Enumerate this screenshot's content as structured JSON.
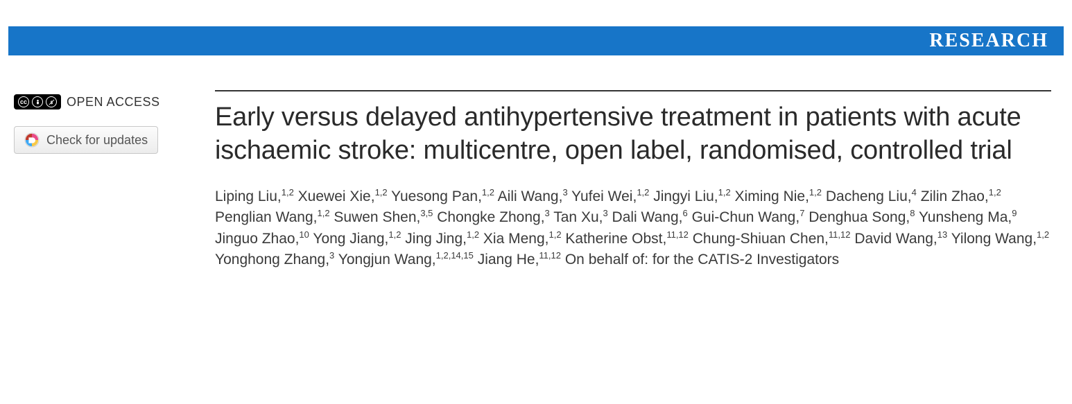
{
  "banner": {
    "label": "RESEARCH",
    "background_color": "#1775c8",
    "text_color": "#ffffff"
  },
  "sidebar": {
    "open_access_label": "OPEN ACCESS",
    "cc_label": "cc",
    "check_updates_label": "Check for updates"
  },
  "article": {
    "title": "Early versus delayed antihypertensive treatment in patients with acute ischaemic stroke: multicentre, open label, randomised, controlled trial",
    "authors": [
      {
        "name": "Liping Liu",
        "affil": "1,2"
      },
      {
        "name": "Xuewei Xie",
        "affil": "1,2"
      },
      {
        "name": "Yuesong Pan",
        "affil": "1,2"
      },
      {
        "name": "Aili Wang",
        "affil": "3"
      },
      {
        "name": "Yufei Wei",
        "affil": "1,2"
      },
      {
        "name": "Jingyi Liu",
        "affil": "1,2"
      },
      {
        "name": "Ximing Nie",
        "affil": "1,2"
      },
      {
        "name": "Dacheng Liu",
        "affil": "4"
      },
      {
        "name": "Zilin Zhao",
        "affil": "1,2"
      },
      {
        "name": "Penglian Wang",
        "affil": "1,2"
      },
      {
        "name": "Suwen Shen",
        "affil": "3,5"
      },
      {
        "name": "Chongke Zhong",
        "affil": "3"
      },
      {
        "name": "Tan Xu",
        "affil": "3"
      },
      {
        "name": "Dali Wang",
        "affil": "6"
      },
      {
        "name": "Gui-Chun Wang",
        "affil": "7"
      },
      {
        "name": "Denghua Song",
        "affil": "8"
      },
      {
        "name": "Yunsheng Ma",
        "affil": "9"
      },
      {
        "name": "Jinguo Zhao",
        "affil": "10"
      },
      {
        "name": "Yong Jiang",
        "affil": "1,2"
      },
      {
        "name": "Jing Jing",
        "affil": "1,2"
      },
      {
        "name": "Xia Meng",
        "affil": "1,2"
      },
      {
        "name": "Katherine Obst",
        "affil": "11,12"
      },
      {
        "name": "Chung-Shiuan Chen",
        "affil": "11,12"
      },
      {
        "name": "David Wang",
        "affil": "13"
      },
      {
        "name": "Yilong Wang",
        "affil": "1,2"
      },
      {
        "name": "Yonghong Zhang",
        "affil": "3"
      },
      {
        "name": "Yongjun Wang",
        "affil": "1,2,14,15"
      },
      {
        "name": "Jiang He",
        "affil": "11,12"
      }
    ],
    "on_behalf": "On behalf of: for the CATIS-2 Investigators"
  },
  "style": {
    "title_color": "#2a2a2a",
    "title_fontsize": 38,
    "author_fontsize": 21,
    "rule_color": "#333333",
    "page_background": "#ffffff"
  }
}
